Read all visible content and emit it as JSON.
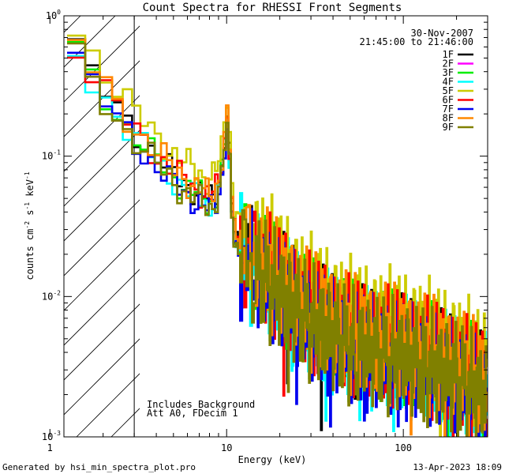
{
  "chart_data": {
    "type": "line",
    "title": "Count Spectra for RHESSI Front Segments",
    "xlabel": "Energy (keV)",
    "ylabel_parts": [
      "counts cm",
      "-2",
      " s",
      "-1",
      " keV",
      "-1"
    ],
    "xscale": "log",
    "yscale": "log",
    "xlim": [
      1.2,
      300
    ],
    "ylim": [
      0.001,
      1.0
    ],
    "x_ticks": [
      {
        "value": 1,
        "label": "1"
      },
      {
        "value": 10,
        "label": "10"
      },
      {
        "value": 100,
        "label": "100"
      }
    ],
    "y_ticks": [
      {
        "value": 0.001,
        "base": "10",
        "exp": "-3"
      },
      {
        "value": 0.01,
        "base": "10",
        "exp": "-2"
      },
      {
        "value": 0.1,
        "base": "10",
        "exp": "-1"
      },
      {
        "value": 1,
        "base": "10",
        "exp": "0"
      }
    ],
    "shaded_region": {
      "x_range": [
        1.2,
        3.0
      ],
      "pattern": "hatched",
      "boundary_energy": 3.0
    },
    "date": "30-Nov-2007",
    "time_range": "21:45:00 to 21:46:00",
    "annotations": [
      "Includes Background",
      "Att A0, FDecim 1"
    ],
    "footer_left": "Generated by hsi_min_spectra_plot.pro",
    "footer_right": "13-Apr-2023 18:09",
    "series": [
      {
        "name": "1F",
        "color": "#000000",
        "scale": 1.0,
        "phase": 0.3
      },
      {
        "name": "2F",
        "color": "#ff00ff",
        "scale": 0.0,
        "phase": 1.1
      },
      {
        "name": "3F",
        "color": "#00ee00",
        "scale": 0.95,
        "phase": 2.2
      },
      {
        "name": "4F",
        "color": "#00ffff",
        "scale": 0.92,
        "phase": 3.1
      },
      {
        "name": "5F",
        "color": "#cccc00",
        "scale": 1.4,
        "phase": 4.0
      },
      {
        "name": "6F",
        "color": "#ff0000",
        "scale": 1.03,
        "phase": 5.2
      },
      {
        "name": "7F",
        "color": "#0000ee",
        "scale": 0.85,
        "phase": 6.3
      },
      {
        "name": "8F",
        "color": "#ff8800",
        "scale": 1.08,
        "phase": 7.1
      },
      {
        "name": "9F",
        "color": "#808000",
        "scale": 0.88,
        "phase": 8.4
      }
    ],
    "reference_spectrum": {
      "energy_kev": [
        1.25,
        1.5,
        2.0,
        2.5,
        3.0,
        4.0,
        5.0,
        6.0,
        7.0,
        8.0,
        9.0,
        9.6,
        10.0,
        10.3,
        10.6,
        11.0,
        12.0,
        14.0,
        17.0,
        20.0,
        25.0,
        30.0,
        40.0,
        50.0,
        60.0,
        80.0,
        100.0,
        150.0,
        200.0,
        250.0,
        300.0
      ],
      "counts": [
        0.75,
        0.5,
        0.3,
        0.2,
        0.15,
        0.1,
        0.075,
        0.062,
        0.055,
        0.048,
        0.06,
        0.1,
        0.2,
        0.15,
        0.06,
        0.03,
        0.022,
        0.018,
        0.015,
        0.012,
        0.009,
        0.0075,
        0.006,
        0.0052,
        0.0048,
        0.0044,
        0.0042,
        0.0035,
        0.003,
        0.0025,
        0.0022
      ]
    },
    "legend_position": "top-right"
  }
}
